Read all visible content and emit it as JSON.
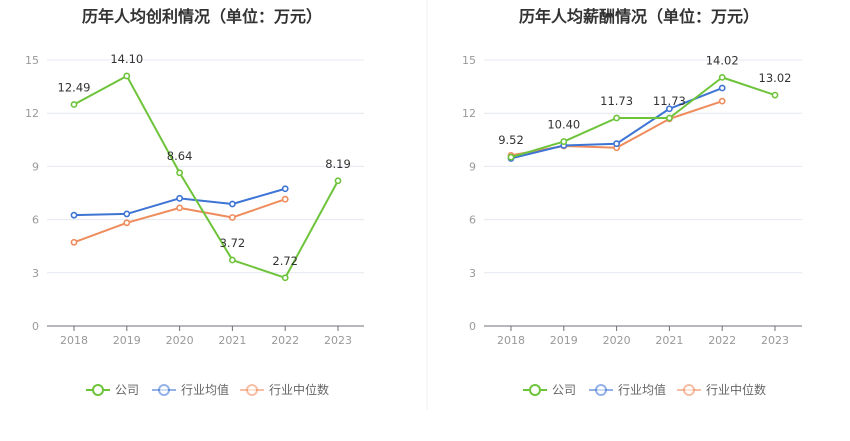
{
  "chart_data": [
    {
      "type": "line",
      "title": "历年人均创利情况（单位：万元）",
      "categories": [
        "2018",
        "2019",
        "2020",
        "2021",
        "2022",
        "2023"
      ],
      "ylim": [
        0,
        15
      ],
      "yticks": [
        0,
        3,
        6,
        9,
        12,
        15
      ],
      "grid": true,
      "legend_position": "bottom",
      "series": [
        {
          "name": "公司",
          "color": "#6dc43a",
          "values": [
            12.49,
            14.1,
            8.64,
            3.72,
            2.72,
            8.19
          ],
          "labels": [
            "12.49",
            "14.10",
            "8.64",
            "3.72",
            "2.72",
            "8.19"
          ]
        },
        {
          "name": "行业均值",
          "color": "#3e74d4",
          "values": [
            6.25,
            6.32,
            7.2,
            6.88,
            7.74,
            null
          ]
        },
        {
          "name": "行业中位数",
          "color": "#ef8c5d",
          "values": [
            4.72,
            5.82,
            6.66,
            6.12,
            7.15,
            null
          ]
        }
      ]
    },
    {
      "type": "line",
      "title": "历年人均薪酬情况（单位：万元）",
      "categories": [
        "2018",
        "2019",
        "2020",
        "2021",
        "2022",
        "2023"
      ],
      "ylim": [
        0,
        15
      ],
      "yticks": [
        0,
        3,
        6,
        9,
        12,
        15
      ],
      "grid": true,
      "legend_position": "bottom",
      "series": [
        {
          "name": "公司",
          "color": "#6dc43a",
          "values": [
            9.52,
            10.4,
            11.73,
            11.73,
            14.02,
            13.02
          ],
          "labels": [
            "9.52",
            "10.40",
            "11.73",
            "11.73",
            "14.02",
            "13.02"
          ]
        },
        {
          "name": "行业均值",
          "color": "#3e74d4",
          "values": [
            9.45,
            10.18,
            10.28,
            12.25,
            13.42,
            null
          ]
        },
        {
          "name": "行业中位数",
          "color": "#ef8c5d",
          "values": [
            9.62,
            10.15,
            10.05,
            11.68,
            12.68,
            null
          ]
        }
      ]
    }
  ]
}
